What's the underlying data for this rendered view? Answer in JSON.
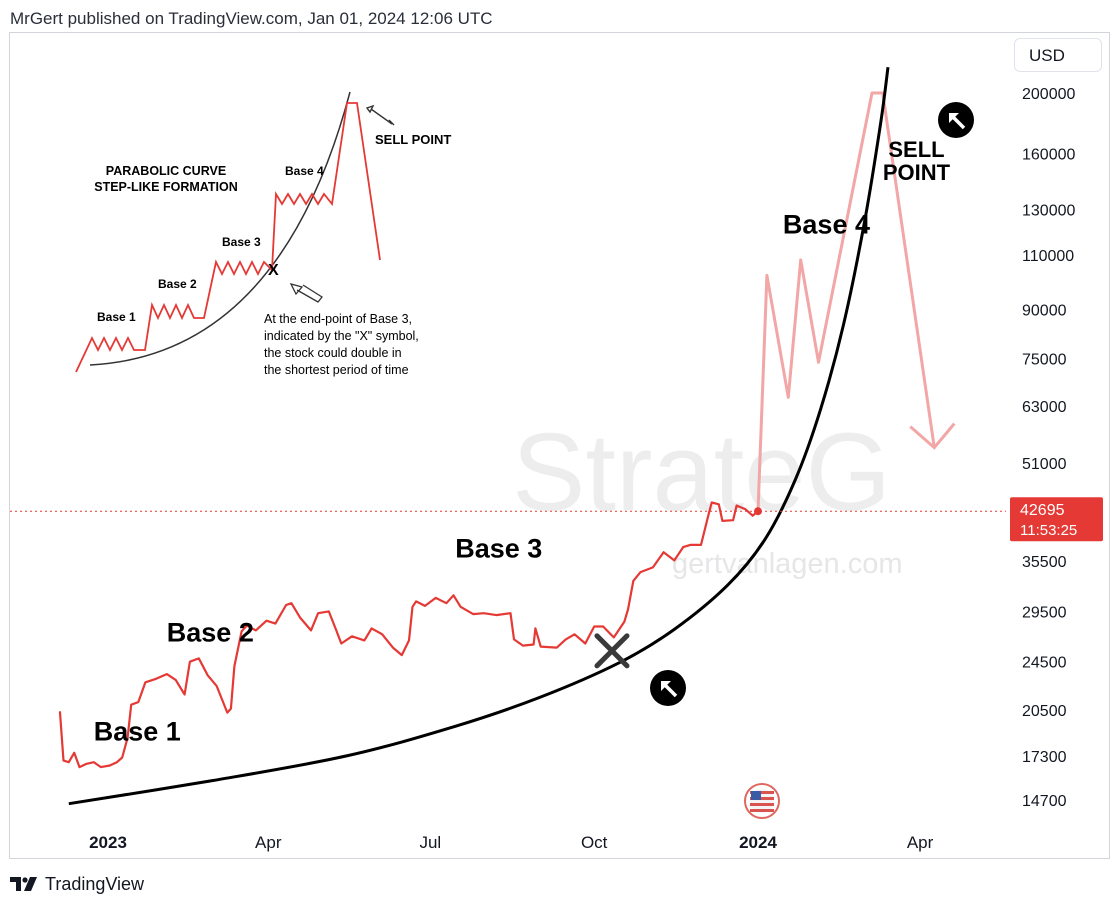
{
  "header": {
    "byline": "MrGert published on TradingView.com, Jan 01, 2024 12:06 UTC"
  },
  "controls": {
    "currency": "USD"
  },
  "footer": {
    "brand": "TradingView"
  },
  "watermark": {
    "big": "StrateG",
    "small": "gertvanlagen.com"
  },
  "chart_data": {
    "type": "line",
    "title": "",
    "axis": {
      "y_ticks": [
        200000,
        160000,
        130000,
        110000,
        90000,
        75000,
        63000,
        51000,
        35500,
        29500,
        24500,
        20500,
        17300,
        14700
      ],
      "x_ticks": [
        "2023",
        "Apr",
        "Jul",
        "Oct",
        "2024",
        "Apr"
      ],
      "x_tick_dates": [
        "2023-01-01",
        "2023-04-01",
        "2023-07-01",
        "2023-10-01",
        "2024-01-01",
        "2024-04-01"
      ],
      "scale": "log",
      "ylim": [
        13500,
        220000
      ],
      "xlim": [
        "2022-12-05",
        "2024-05-20"
      ]
    },
    "last_price": {
      "value": 42695,
      "countdown": "11:53:25",
      "color": "#e53935"
    },
    "series": [
      {
        "name": "BTCUSD price",
        "color": "#e53935",
        "points": [
          [
            "2022-12-05",
            20400
          ],
          [
            "2022-12-07",
            17000
          ],
          [
            "2022-12-10",
            16900
          ],
          [
            "2022-12-13",
            17500
          ],
          [
            "2022-12-16",
            16600
          ],
          [
            "2022-12-20",
            16800
          ],
          [
            "2022-12-24",
            16900
          ],
          [
            "2022-12-28",
            16600
          ],
          [
            "2023-01-02",
            16700
          ],
          [
            "2023-01-06",
            16900
          ],
          [
            "2023-01-09",
            17200
          ],
          [
            "2023-01-12",
            18500
          ],
          [
            "2023-01-14",
            20900
          ],
          [
            "2023-01-18",
            21100
          ],
          [
            "2023-01-22",
            22700
          ],
          [
            "2023-01-28",
            23000
          ],
          [
            "2023-02-03",
            23400
          ],
          [
            "2023-02-08",
            22900
          ],
          [
            "2023-02-13",
            21700
          ],
          [
            "2023-02-16",
            24500
          ],
          [
            "2023-02-21",
            24800
          ],
          [
            "2023-02-26",
            23300
          ],
          [
            "2023-03-03",
            22400
          ],
          [
            "2023-03-09",
            20300
          ],
          [
            "2023-03-11",
            20600
          ],
          [
            "2023-03-13",
            24100
          ],
          [
            "2023-03-17",
            27400
          ],
          [
            "2023-03-20",
            28000
          ],
          [
            "2023-03-25",
            27500
          ],
          [
            "2023-03-31",
            28500
          ],
          [
            "2023-04-05",
            28200
          ],
          [
            "2023-04-11",
            30200
          ],
          [
            "2023-04-14",
            30400
          ],
          [
            "2023-04-19",
            28800
          ],
          [
            "2023-04-25",
            27500
          ],
          [
            "2023-04-29",
            29300
          ],
          [
            "2023-05-05",
            29500
          ],
          [
            "2023-05-09",
            27600
          ],
          [
            "2023-05-12",
            26200
          ],
          [
            "2023-05-18",
            26900
          ],
          [
            "2023-05-25",
            26500
          ],
          [
            "2023-05-29",
            27700
          ],
          [
            "2023-06-04",
            27100
          ],
          [
            "2023-06-10",
            25800
          ],
          [
            "2023-06-15",
            25100
          ],
          [
            "2023-06-19",
            26500
          ],
          [
            "2023-06-21",
            30000
          ],
          [
            "2023-06-23",
            30600
          ],
          [
            "2023-06-28",
            30100
          ],
          [
            "2023-07-04",
            31000
          ],
          [
            "2023-07-10",
            30400
          ],
          [
            "2023-07-14",
            31300
          ],
          [
            "2023-07-18",
            30000
          ],
          [
            "2023-07-25",
            29200
          ],
          [
            "2023-07-31",
            29300
          ],
          [
            "2023-08-07",
            29100
          ],
          [
            "2023-08-15",
            29300
          ],
          [
            "2023-08-17",
            26600
          ],
          [
            "2023-08-22",
            26000
          ],
          [
            "2023-08-28",
            26100
          ],
          [
            "2023-08-29",
            27700
          ],
          [
            "2023-09-01",
            25900
          ],
          [
            "2023-09-10",
            25800
          ],
          [
            "2023-09-15",
            26600
          ],
          [
            "2023-09-20",
            27100
          ],
          [
            "2023-09-26",
            26200
          ],
          [
            "2023-10-01",
            27900
          ],
          [
            "2023-10-06",
            27900
          ],
          [
            "2023-10-12",
            26800
          ],
          [
            "2023-10-18",
            28400
          ],
          [
            "2023-10-20",
            29700
          ],
          [
            "2023-10-23",
            33000
          ],
          [
            "2023-10-27",
            34100
          ],
          [
            "2023-11-03",
            34700
          ],
          [
            "2023-11-09",
            36700
          ],
          [
            "2023-11-15",
            35600
          ],
          [
            "2023-11-20",
            37400
          ],
          [
            "2023-11-24",
            37700
          ],
          [
            "2023-11-30",
            37700
          ],
          [
            "2023-12-04",
            41900
          ],
          [
            "2023-12-06",
            44100
          ],
          [
            "2023-12-10",
            43800
          ],
          [
            "2023-12-12",
            41200
          ],
          [
            "2023-12-18",
            41300
          ],
          [
            "2023-12-20",
            43600
          ],
          [
            "2023-12-25",
            43000
          ],
          [
            "2023-12-29",
            42000
          ],
          [
            "2024-01-01",
            42695
          ]
        ]
      },
      {
        "name": "Projection",
        "color": "#f2a6a6",
        "points": [
          [
            "2024-01-01",
            42695
          ],
          [
            "2024-01-06",
            102000
          ],
          [
            "2024-01-18",
            65000
          ],
          [
            "2024-01-25",
            108000
          ],
          [
            "2024-02-04",
            74000
          ],
          [
            "2024-03-05",
            200000
          ],
          [
            "2024-03-11",
            200000
          ],
          [
            "2024-04-09",
            54000
          ]
        ]
      },
      {
        "name": "Parabolic curve",
        "color": "#000000",
        "points": [
          [
            "2022-12-10",
            14500
          ],
          [
            "2023-03-01",
            15800
          ],
          [
            "2023-05-15",
            17300
          ],
          [
            "2023-07-15",
            19300
          ],
          [
            "2023-09-01",
            21500
          ],
          [
            "2023-10-15",
            24400
          ],
          [
            "2023-11-15",
            27600
          ],
          [
            "2023-12-15",
            32500
          ],
          [
            "2024-01-05",
            38500
          ],
          [
            "2024-01-22",
            48000
          ],
          [
            "2024-02-05",
            62000
          ],
          [
            "2024-02-18",
            85000
          ],
          [
            "2024-03-01",
            125000
          ],
          [
            "2024-03-10",
            180000
          ],
          [
            "2024-03-14",
            220000
          ]
        ]
      }
    ],
    "annotations": [
      {
        "label": "Base 1",
        "date": "2022-12-24",
        "value": 18300
      },
      {
        "label": "Base 2",
        "date": "2023-02-03",
        "value": 26400
      },
      {
        "label": "Base 3",
        "date": "2023-07-15",
        "value": 36000
      },
      {
        "label": "Base 4",
        "date": "2024-01-15",
        "value": 119000
      },
      {
        "label": "SELL",
        "date": "2024-03-30",
        "value": 158000
      },
      {
        "label": "POINT",
        "date": "2024-03-30",
        "value": 145000
      }
    ],
    "markers": {
      "x_date": "2023-10-11",
      "x_value": 25500
    },
    "inset": {
      "title": [
        "PARABOLIC CURVE",
        "STEP-LIKE FORMATION"
      ],
      "bases": [
        "Base 1",
        "Base 2",
        "Base 3",
        "Base 4"
      ],
      "sell_label": "SELL POINT",
      "x_symbol": "X",
      "note": [
        "At the end-point of Base 3,",
        "indicated by the \"X\" symbol,",
        "the stock could double in",
        "the shortest period of time"
      ]
    }
  }
}
